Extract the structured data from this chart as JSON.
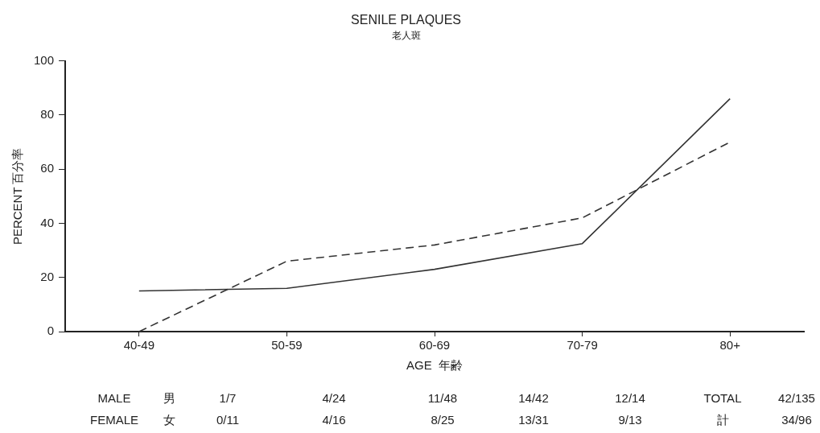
{
  "chart_data": {
    "type": "line",
    "title": "SENILE PLAQUES",
    "subtitle": "老人斑",
    "xlabel": "AGE  年齢",
    "ylabel": "PERCENT 百分率",
    "categories": [
      "40-49",
      "50-59",
      "60-69",
      "70-79",
      "80+"
    ],
    "series": [
      {
        "color": "#333333",
        "line_style": "solid",
        "values": [
          15,
          16,
          23,
          32.5,
          86
        ]
      },
      {
        "color": "#333333",
        "line_style": "dashed",
        "values": [
          0,
          26,
          32,
          42,
          70
        ]
      }
    ],
    "ylim": [
      0,
      100
    ],
    "yticks": [
      0,
      20,
      40,
      60,
      80,
      100
    ],
    "marker": "none",
    "legend": false,
    "annotations": [
      "MALE",
      "男",
      "1/7",
      "4/24",
      "11/48",
      "14/42",
      "12/14",
      "TOTAL",
      "42/135",
      "FEMALE",
      "女",
      "0/11",
      "4/16",
      "8/25",
      "13/31",
      "9/13",
      "計",
      "34/96"
    ]
  }
}
